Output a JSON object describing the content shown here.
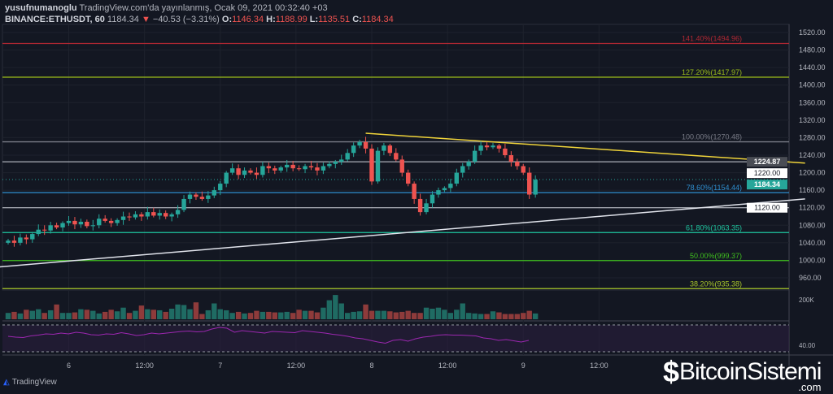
{
  "header": {
    "author": "yusufnumanoglu",
    "published": "TradingView.com'da yayınlanmış, Ocak 09, 2021 00:32:40 +03",
    "symbol": "BINANCE:ETHUSDT, 60",
    "last": "1184.34",
    "change": "−40.53 (−3.31%)",
    "o_label": "O:",
    "o": "1146.34",
    "h_label": "H:",
    "h": "1188.99",
    "l_label": "L:",
    "l": "1135.51",
    "c_label": "C:",
    "c": "1184.34"
  },
  "colors": {
    "up": "#26a69a",
    "down": "#ef5350",
    "vol_up": "#1f6b63",
    "vol_down": "#8e3b3b",
    "rsi": "#9c27b0"
  },
  "chart_data": {
    "type": "candlestick",
    "y_ticks": [
      1520,
      1480,
      1440,
      1400,
      1360,
      1320,
      1280,
      1240,
      1200,
      1160,
      1120,
      1080,
      1040,
      1000,
      960
    ],
    "y_tick_labels": [
      "1520.00",
      "1480.00",
      "1440.00",
      "1400.00",
      "1360.00",
      "1320.00",
      "1280.00",
      "1240.00",
      "1200.00",
      "1160.00",
      "1120.00",
      "1080.00",
      "1040.00",
      "1000.00",
      "960.00"
    ],
    "x_ticks": [
      {
        "hour": 10,
        "label": "6"
      },
      {
        "hour": 22.5,
        "label": "12:00"
      },
      {
        "hour": 35,
        "label": "7"
      },
      {
        "hour": 47.5,
        "label": "12:00"
      },
      {
        "hour": 60,
        "label": "8"
      },
      {
        "hour": 72.5,
        "label": "12:00"
      },
      {
        "hour": 85,
        "label": "9"
      },
      {
        "hour": 97.5,
        "label": "12:00"
      }
    ],
    "closes": [
      1045,
      1040,
      1052,
      1048,
      1060,
      1070,
      1068,
      1080,
      1075,
      1085,
      1090,
      1082,
      1088,
      1078,
      1080,
      1095,
      1090,
      1085,
      1092,
      1100,
      1098,
      1105,
      1100,
      1110,
      1102,
      1108,
      1100,
      1105,
      1115,
      1140,
      1150,
      1145,
      1140,
      1148,
      1160,
      1175,
      1200,
      1210,
      1195,
      1205,
      1200,
      1195,
      1215,
      1210,
      1205,
      1212,
      1218,
      1210,
      1208,
      1215,
      1212,
      1205,
      1215,
      1220,
      1225,
      1230,
      1245,
      1262,
      1270,
      1255,
      1180,
      1250,
      1262,
      1245,
      1230,
      1200,
      1175,
      1140,
      1110,
      1130,
      1150,
      1160,
      1165,
      1175,
      1200,
      1215,
      1225,
      1250,
      1262,
      1258,
      1262,
      1255,
      1240,
      1225,
      1215,
      1200,
      1150,
      1184
    ],
    "volumes": [
      60,
      70,
      55,
      90,
      80,
      95,
      60,
      85,
      140,
      60,
      60,
      65,
      95,
      90,
      80,
      55,
      70,
      90,
      75,
      110,
      60,
      80,
      130,
      95,
      90,
      85,
      70,
      100,
      140,
      135,
      95,
      160,
      50,
      85,
      150,
      95,
      85,
      60,
      70,
      55,
      60,
      80,
      70,
      70,
      65,
      65,
      70,
      60,
      90,
      80,
      80,
      65,
      110,
      180,
      230,
      150,
      60,
      70,
      75,
      140,
      80,
      80,
      80,
      75,
      65,
      70,
      80,
      60,
      60,
      110,
      100,
      110,
      90,
      60,
      90,
      150,
      60,
      55,
      50,
      50,
      75,
      65,
      50,
      50,
      50,
      60,
      80,
      55
    ],
    "rsi": [
      52,
      50,
      49,
      53,
      55,
      58,
      57,
      60,
      58,
      62,
      60,
      56,
      55,
      58,
      57,
      61,
      58,
      54,
      56,
      60,
      58,
      60,
      62,
      64,
      65,
      63,
      64,
      70,
      74,
      72,
      62,
      66,
      64,
      62,
      60,
      64,
      63,
      62,
      61,
      66,
      64,
      62,
      60,
      57,
      55,
      52,
      48,
      46,
      42,
      38,
      35,
      42,
      44,
      40,
      46,
      50,
      52,
      55,
      56,
      55,
      55,
      54,
      53,
      48,
      46,
      42,
      44,
      41,
      38,
      42
    ],
    "fib_levels": [
      {
        "price": 1494.96,
        "label": "141.40%(1494.96)",
        "color": "#b22833"
      },
      {
        "price": 1417.97,
        "label": "127.20%(1417.97)",
        "color": "#9bbd1a"
      },
      {
        "price": 1270.48,
        "label": "100.00%(1270.48)",
        "color": "#787b86"
      },
      {
        "price": 1154.44,
        "label": "78.60%(1154.44)",
        "color": "#2f8fd0"
      },
      {
        "price": 1063.35,
        "label": "61.80%(1063.35)",
        "color": "#1fc6a0"
      },
      {
        "price": 999.37,
        "label": "50.00%(999.37)",
        "color": "#3fbf1f"
      },
      {
        "price": 935.38,
        "label": "38.20%(935.38)",
        "color": "#a8c62a"
      }
    ],
    "horizontal_lines": [
      {
        "price": 1224.87,
        "label": "1224.87"
      },
      {
        "price": 1220.0,
        "label": "1220.00"
      },
      {
        "price": 1120.0,
        "label": "1120.00"
      }
    ],
    "current_price": {
      "price": 1184.34,
      "label": "1184.34"
    },
    "trendlines": [
      {
        "color": "#f0d43a",
        "from": [
          59,
          1290
        ],
        "to": [
          131.5,
          1222
        ]
      },
      {
        "color": "#e0e3eb",
        "from": [
          -1.4,
          985
        ],
        "to": [
          131.5,
          1140
        ]
      }
    ],
    "volume_tick": "200K",
    "rsi_tick": "40.00"
  },
  "footer": {
    "tradingview": "TradingView",
    "watermark_main": "BitcoinSistemi",
    "watermark_sub": ".com"
  }
}
